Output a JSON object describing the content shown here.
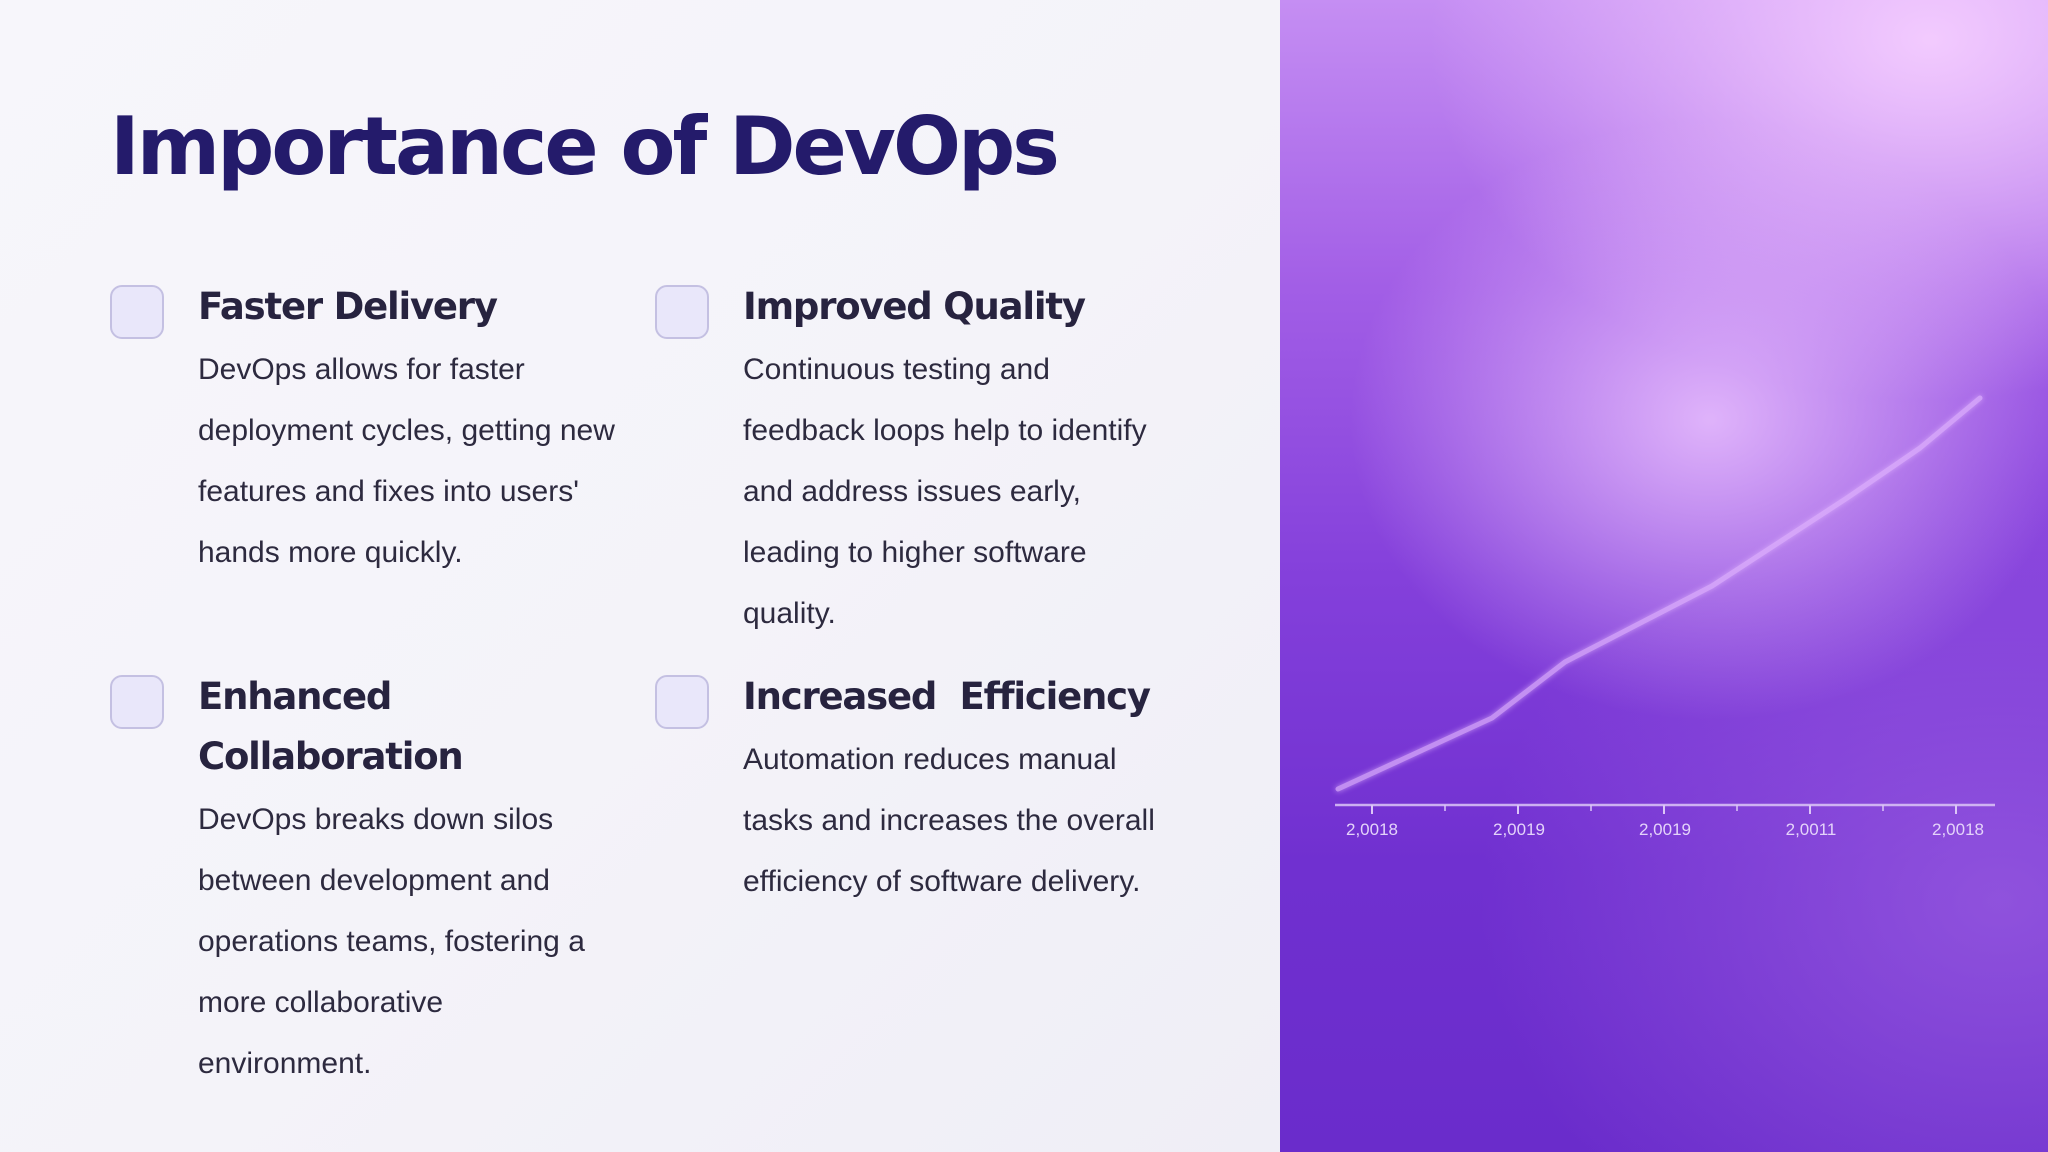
{
  "title": "Importance of DevOps",
  "features": [
    {
      "title": "Faster Delivery",
      "text": "DevOps allows for faster deployment cycles, getting new features and fixes into users' hands more quickly."
    },
    {
      "title": "Improved Quality",
      "text": "Continuous testing and feedback loops help to identify and address issues early, leading to higher software quality."
    },
    {
      "title": "Enhanced Collaboration",
      "text": "DevOps breaks down silos between development and operations teams, fostering a more collaborative environment."
    },
    {
      "title": "Increased  Efficiency",
      "text": "Automation reduces manual tasks and increases the overall efficiency of software delivery."
    }
  ],
  "chart": {
    "type": "line",
    "tick_labels": [
      "2,0018",
      "2,0019",
      "2,0019",
      "2,0011",
      "2,0018"
    ],
    "line_color": "#e2b5ff",
    "axis_color": "#dcc6f7"
  },
  "colors": {
    "title": "#241b6b",
    "checkbox_fill": "#e9e7fa",
    "checkbox_border": "#c4c0e2",
    "panel_top": "#c58ef3",
    "panel_bottom": "#6a2ccb"
  }
}
